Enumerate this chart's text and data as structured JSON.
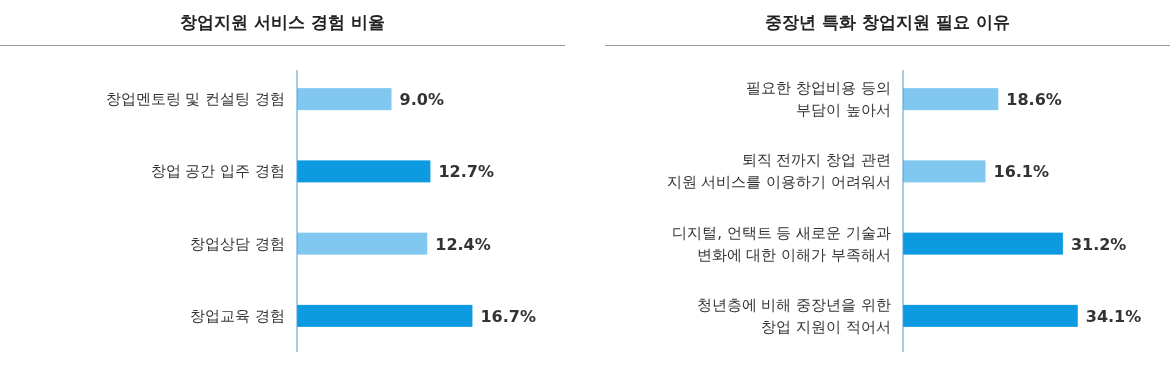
{
  "chart_data": [
    {
      "type": "bar",
      "orientation": "horizontal",
      "title": "창업지원 서비스 경험 비율",
      "relative": false,
      "data_labels": true,
      "categories": [
        "창업멘토링 및 컨설팅 경험",
        "창업 공간 입주 경험",
        "창업상담 경험",
        "창업교육 경험"
      ],
      "values": [
        9.0,
        12.7,
        12.4,
        16.7
      ],
      "value_labels": [
        "9.0%",
        "12.7%",
        "12.4%",
        "16.7%"
      ],
      "colors": [
        "#80c8f0",
        "#0d9ae0",
        "#80c8f0",
        "#0d9ae0"
      ]
    },
    {
      "type": "bar",
      "orientation": "horizontal",
      "title": "중장년 특화 창업지원 필요 이유",
      "relative": false,
      "data_labels": true,
      "categories": [
        "필요한 창업비용 등의\n부담이 높아서",
        "퇴직 전까지 창업 관련\n지원 서비스를 이용하기 어려워서",
        "디지털, 언택트 등 새로운 기술과\n변화에 대한 이해가 부족해서",
        "청년층에 비해 중장년을 위한\n창업 지원이 적어서"
      ],
      "values": [
        18.6,
        16.1,
        31.2,
        34.1
      ],
      "value_labels": [
        "18.6%",
        "16.1%",
        "31.2%",
        "34.1%"
      ],
      "colors": [
        "#80c8f0",
        "#80c8f0",
        "#0d9ae0",
        "#0d9ae0"
      ]
    }
  ]
}
